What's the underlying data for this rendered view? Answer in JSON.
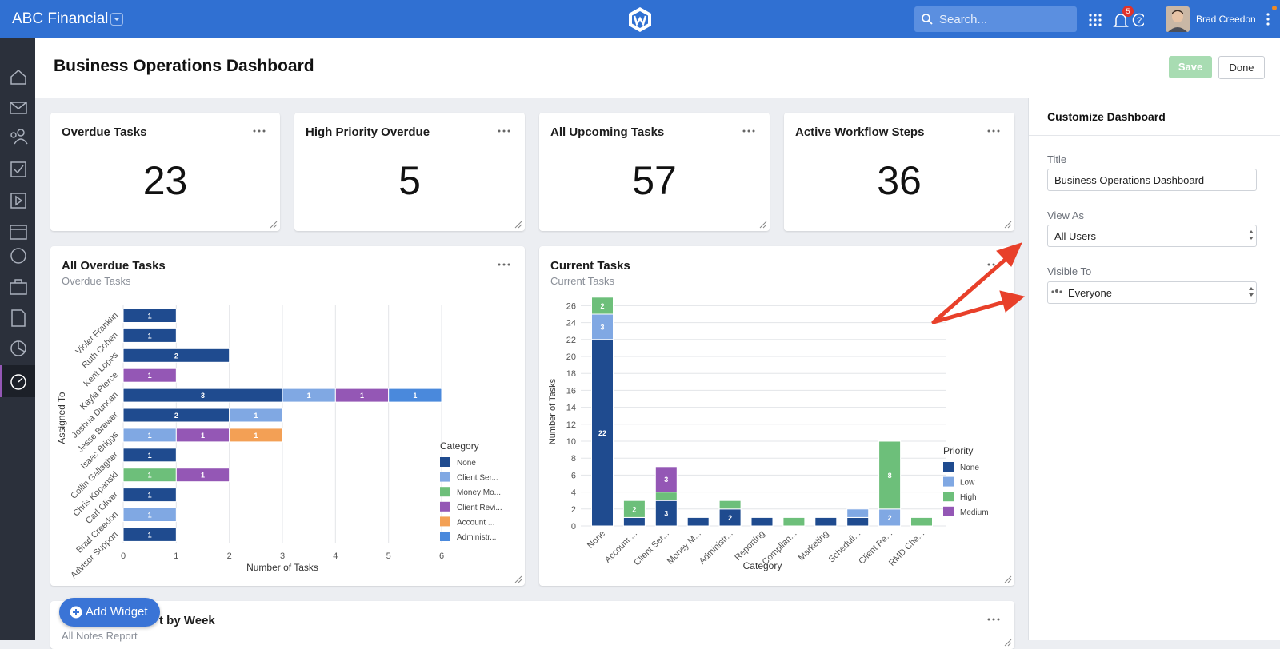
{
  "header": {
    "brand": "ABC Financial",
    "search_placeholder": "Search...",
    "notification_count": 5,
    "user": "Brad Creedon"
  },
  "page": {
    "title": "Business Operations Dashboard",
    "save": "Save",
    "done": "Done"
  },
  "kpis": [
    {
      "title": "Overdue Tasks",
      "value": 23
    },
    {
      "title": "High Priority Overdue",
      "value": 5
    },
    {
      "title": "All Upcoming Tasks",
      "value": 57
    },
    {
      "title": "Active Workflow Steps",
      "value": 36
    }
  ],
  "widgets": [
    {
      "title": "All Overdue Tasks",
      "subtitle": "Overdue Tasks",
      "chart_data": {
        "type": "bar",
        "orientation": "horizontal",
        "stacked": true,
        "grid": true,
        "categories": [
          "Violet Franklin",
          "Ruth Cohen",
          "Kent Lopes",
          "Kayla Pierce",
          "Joshua Duncan",
          "Jesse Brewer",
          "Isaac Briggs",
          "Collin Gallagher",
          "Chris Kopanski",
          "Carl Oliver",
          "Brad Creedon",
          "Advisor Support"
        ],
        "series": [
          {
            "name": "None",
            "color": "#1f4b8f",
            "values": [
              1,
              1,
              2,
              null,
              3,
              2,
              null,
              1,
              null,
              1,
              null,
              1
            ]
          },
          {
            "name": "Client Ser...",
            "color": "#80a8e3",
            "values": [
              null,
              null,
              null,
              null,
              1,
              1,
              1,
              null,
              null,
              null,
              1,
              null
            ]
          },
          {
            "name": "Money Mo...",
            "color": "#6dbf7a",
            "values": [
              null,
              null,
              null,
              null,
              null,
              null,
              null,
              null,
              1,
              null,
              null,
              null
            ]
          },
          {
            "name": "Client Revi...",
            "color": "#9457b5",
            "values": [
              null,
              null,
              null,
              1,
              1,
              null,
              1,
              null,
              1,
              null,
              null,
              null
            ]
          },
          {
            "name": "Account ...",
            "color": "#f3a055",
            "values": [
              null,
              null,
              null,
              null,
              null,
              null,
              1,
              null,
              null,
              null,
              null,
              null
            ]
          },
          {
            "name": "Administr...",
            "color": "#4a89dc",
            "values": [
              null,
              null,
              null,
              null,
              1,
              null,
              null,
              null,
              null,
              null,
              null,
              null
            ]
          }
        ],
        "xlim": [
          0,
          6
        ],
        "xticks": [
          0,
          1,
          2,
          3,
          4,
          5,
          6
        ],
        "x_label": "Number of Tasks",
        "y_label": "Assigned To",
        "legend_title": "Category"
      }
    },
    {
      "title": "Current Tasks",
      "subtitle": "Current Tasks",
      "chart_data": {
        "type": "bar",
        "orientation": "vertical",
        "stacked": true,
        "grid": true,
        "categories": [
          "None",
          "Account ...",
          "Client Ser...",
          "Money M...",
          "Administr...",
          "Reporting",
          "Complian...",
          "Marketing",
          "Scheduli...",
          "Client Re...",
          "RMD Che..."
        ],
        "series": [
          {
            "name": "None",
            "color": "#1f4b8f",
            "values": [
              22,
              1,
              3,
              1,
              2,
              1,
              null,
              1,
              1,
              null,
              null
            ]
          },
          {
            "name": "Low",
            "color": "#80a8e3",
            "values": [
              3,
              null,
              null,
              null,
              null,
              null,
              null,
              null,
              1,
              2,
              null
            ]
          },
          {
            "name": "High",
            "color": "#6dbf7a",
            "values": [
              2,
              2,
              1,
              null,
              1,
              null,
              1,
              null,
              null,
              8,
              1
            ]
          },
          {
            "name": "Medium",
            "color": "#9457b5",
            "values": [
              null,
              null,
              3,
              null,
              null,
              null,
              null,
              null,
              null,
              null,
              null
            ]
          }
        ],
        "ylim": [
          0,
          27
        ],
        "yticks": [
          0,
          2,
          4,
          6,
          8,
          10,
          12,
          14,
          16,
          18,
          20,
          22,
          24,
          26
        ],
        "x_label": "Category",
        "y_label": "Number of Tasks",
        "legend_title": "Priority"
      }
    }
  ],
  "bottom_widget": {
    "title": "t by Week",
    "subtitle": "All Notes Report"
  },
  "add_widget": "Add Widget",
  "customize": {
    "heading": "Customize Dashboard",
    "fields": [
      {
        "label": "Title",
        "value": "Business Operations Dashboard"
      },
      {
        "label": "View As",
        "value": "All Users"
      },
      {
        "label": "Visible To",
        "value": "Everyone"
      }
    ]
  }
}
